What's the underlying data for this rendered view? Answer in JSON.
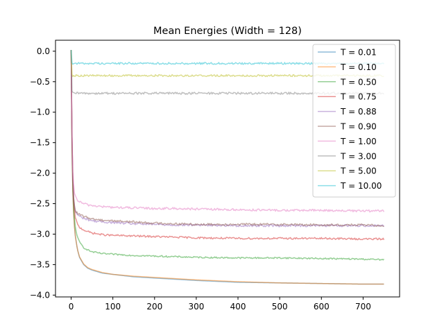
{
  "chart_data": {
    "type": "line",
    "title": "Mean Energies (Width = 128)",
    "xlabel": "",
    "ylabel": "",
    "xlim": [
      -37.5,
      787.5
    ],
    "ylim": [
      -4.03,
      0.18
    ],
    "xticks": [
      0,
      100,
      200,
      300,
      400,
      500,
      600,
      700
    ],
    "yticks": [
      0.0,
      -0.5,
      -1.0,
      -1.5,
      -2.0,
      -2.5,
      -3.0,
      -3.5,
      -4.0
    ],
    "ytick_labels": [
      "0.0",
      "−0.5",
      "−1.0",
      "−1.5",
      "−2.0",
      "−2.5",
      "−3.0",
      "−3.5",
      "−4.0"
    ],
    "grid": false,
    "legend_position": "top-right",
    "x_sample": [
      0,
      1,
      2,
      3,
      4,
      6,
      8,
      10,
      15,
      20,
      30,
      40,
      50,
      75,
      100,
      150,
      200,
      250,
      300,
      400,
      500,
      600,
      700,
      750
    ],
    "series": [
      {
        "name": "T = 0.01",
        "color": "#1f77b4",
        "noise": 0.0,
        "values": [
          0.02,
          -1.0,
          -1.6,
          -2.0,
          -2.3,
          -2.65,
          -2.88,
          -3.03,
          -3.25,
          -3.38,
          -3.5,
          -3.56,
          -3.59,
          -3.64,
          -3.66,
          -3.7,
          -3.72,
          -3.74,
          -3.76,
          -3.79,
          -3.8,
          -3.81,
          -3.82,
          -3.82
        ]
      },
      {
        "name": "T = 0.10",
        "color": "#ff7f0e",
        "noise": 0.0,
        "values": [
          0.02,
          -1.0,
          -1.6,
          -2.0,
          -2.3,
          -2.65,
          -2.88,
          -3.03,
          -3.25,
          -3.37,
          -3.49,
          -3.55,
          -3.58,
          -3.63,
          -3.66,
          -3.69,
          -3.71,
          -3.73,
          -3.75,
          -3.78,
          -3.8,
          -3.81,
          -3.82,
          -3.82
        ]
      },
      {
        "name": "T = 0.50",
        "color": "#2ca02c",
        "noise": 0.012,
        "values": [
          0.02,
          -0.9,
          -1.5,
          -1.9,
          -2.2,
          -2.55,
          -2.75,
          -2.88,
          -3.05,
          -3.13,
          -3.22,
          -3.26,
          -3.29,
          -3.32,
          -3.33,
          -3.35,
          -3.36,
          -3.37,
          -3.38,
          -3.39,
          -3.39,
          -3.4,
          -3.41,
          -3.42
        ]
      },
      {
        "name": "T = 0.75",
        "color": "#d62728",
        "noise": 0.015,
        "values": [
          0.02,
          -0.8,
          -1.4,
          -1.8,
          -2.1,
          -2.45,
          -2.62,
          -2.72,
          -2.84,
          -2.89,
          -2.93,
          -2.96,
          -2.98,
          -3.01,
          -3.02,
          -3.03,
          -3.04,
          -3.05,
          -3.06,
          -3.07,
          -3.07,
          -3.07,
          -3.08,
          -3.08
        ]
      },
      {
        "name": "T = 0.88",
        "color": "#9467bd",
        "noise": 0.018,
        "values": [
          0.02,
          -0.8,
          -1.4,
          -1.8,
          -2.1,
          -2.4,
          -2.55,
          -2.62,
          -2.68,
          -2.71,
          -2.74,
          -2.76,
          -2.78,
          -2.8,
          -2.81,
          -2.83,
          -2.84,
          -2.85,
          -2.85,
          -2.86,
          -2.86,
          -2.86,
          -2.86,
          -2.86
        ]
      },
      {
        "name": "T = 0.90",
        "color": "#8c564b",
        "noise": 0.018,
        "values": [
          0.02,
          -0.8,
          -1.4,
          -1.8,
          -2.1,
          -2.4,
          -2.54,
          -2.61,
          -2.66,
          -2.68,
          -2.71,
          -2.73,
          -2.75,
          -2.77,
          -2.78,
          -2.8,
          -2.82,
          -2.83,
          -2.84,
          -2.84,
          -2.84,
          -2.85,
          -2.85,
          -2.86
        ]
      },
      {
        "name": "T = 1.00",
        "color": "#e377c2",
        "noise": 0.018,
        "values": [
          0.02,
          -0.7,
          -1.3,
          -1.7,
          -2.0,
          -2.2,
          -2.32,
          -2.38,
          -2.44,
          -2.47,
          -2.5,
          -2.52,
          -2.53,
          -2.55,
          -2.56,
          -2.57,
          -2.58,
          -2.58,
          -2.59,
          -2.6,
          -2.61,
          -2.61,
          -2.62,
          -2.62
        ]
      },
      {
        "name": "T = 3.00",
        "color": "#7f7f7f",
        "noise": 0.018,
        "values": [
          0.02,
          -0.5,
          -0.65,
          -0.68,
          -0.69,
          -0.69,
          -0.69,
          -0.69,
          -0.69,
          -0.69,
          -0.69,
          -0.69,
          -0.69,
          -0.69,
          -0.69,
          -0.69,
          -0.69,
          -0.69,
          -0.69,
          -0.69,
          -0.69,
          -0.69,
          -0.69,
          -0.69
        ]
      },
      {
        "name": "T = 5.00",
        "color": "#bcbd22",
        "noise": 0.016,
        "values": [
          0.02,
          -0.3,
          -0.38,
          -0.4,
          -0.4,
          -0.4,
          -0.4,
          -0.4,
          -0.4,
          -0.4,
          -0.4,
          -0.4,
          -0.4,
          -0.4,
          -0.4,
          -0.4,
          -0.4,
          -0.4,
          -0.4,
          -0.4,
          -0.4,
          -0.4,
          -0.4,
          -0.4
        ]
      },
      {
        "name": "T = 10.00",
        "color": "#17becf",
        "noise": 0.016,
        "values": [
          0.02,
          -0.15,
          -0.19,
          -0.2,
          -0.2,
          -0.2,
          -0.2,
          -0.2,
          -0.2,
          -0.2,
          -0.2,
          -0.2,
          -0.2,
          -0.2,
          -0.2,
          -0.2,
          -0.2,
          -0.2,
          -0.2,
          -0.2,
          -0.2,
          -0.2,
          -0.2,
          -0.2
        ]
      }
    ]
  }
}
